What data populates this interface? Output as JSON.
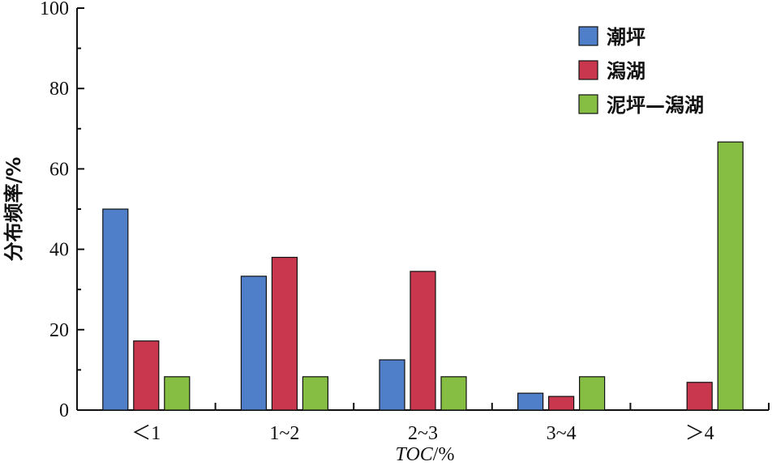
{
  "chart_data": {
    "type": "bar",
    "title": "",
    "xlabel": "TOC/%",
    "ylabel": "分布频率/%",
    "categories": [
      "＜1",
      "1~2",
      "2~3",
      "3~4",
      "＞4"
    ],
    "series": [
      {
        "name": "潮坪",
        "color": "#4f7fc8",
        "values": [
          50,
          33.3,
          12.5,
          4.2,
          0
        ]
      },
      {
        "name": "潟湖",
        "color": "#c8374d",
        "values": [
          17.2,
          38,
          34.5,
          3.4,
          6.9
        ]
      },
      {
        "name": "泥坪—潟湖",
        "color": "#86bd43",
        "values": [
          8.3,
          8.3,
          8.3,
          8.3,
          66.7
        ]
      }
    ],
    "ylim": [
      0,
      100
    ],
    "yticks": [
      0,
      20,
      40,
      60,
      80,
      100
    ],
    "grid": false,
    "legend_position": "top-right"
  }
}
